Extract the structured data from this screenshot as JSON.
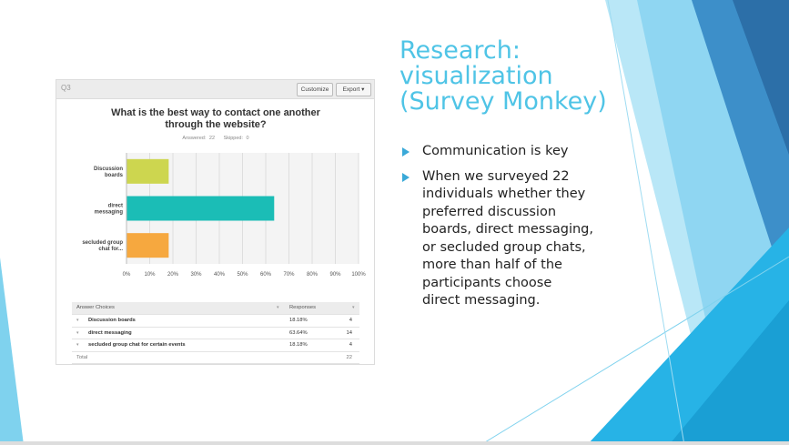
{
  "slide": {
    "title_lines": [
      "Research:",
      "visualization",
      "(Survey Monkey)"
    ],
    "bullets": [
      "Communication is key",
      "When we surveyed 22\nindividuals whether they\npreferred discussion\nboards, direct messaging,\nor secluded group chats,\nmore than half of the\nparticipants choose\ndirect messaging."
    ],
    "colors": {
      "title": "#4fc4e6",
      "bullet_arrow": "#3aa9d8"
    }
  },
  "survey": {
    "question_number": "Q3",
    "customize_label": "Customize",
    "export_label": "Export ▾",
    "question_title": "What is the best way to contact one another\nthrough the website?",
    "answered": "Answered: 22",
    "skipped": "Skipped: 0"
  },
  "chart_data": {
    "type": "bar",
    "orientation": "horizontal",
    "categories": [
      "Discussion\nboards",
      "direct\nmessaging",
      "secluded group\nchat for..."
    ],
    "values": [
      18.18,
      63.64,
      18.18
    ],
    "colors": [
      "#cdd64f",
      "#1bbdb6",
      "#f6a83f"
    ],
    "xlim": [
      0,
      100
    ],
    "x_ticks": [
      "0%",
      "10%",
      "20%",
      "30%",
      "40%",
      "50%",
      "60%",
      "70%",
      "80%",
      "90%",
      "100%"
    ],
    "grid": true
  },
  "table": {
    "headers": [
      "Answer Choices",
      "Responses",
      ""
    ],
    "rows": [
      {
        "choice": "Discussion boards",
        "percent": "18.18%",
        "count": "4"
      },
      {
        "choice": "direct messaging",
        "percent": "63.64%",
        "count": "14"
      },
      {
        "choice": "secluded group chat for certain events",
        "percent": "18.18%",
        "count": "4"
      }
    ],
    "total_label": "Total",
    "total_count": "22"
  }
}
